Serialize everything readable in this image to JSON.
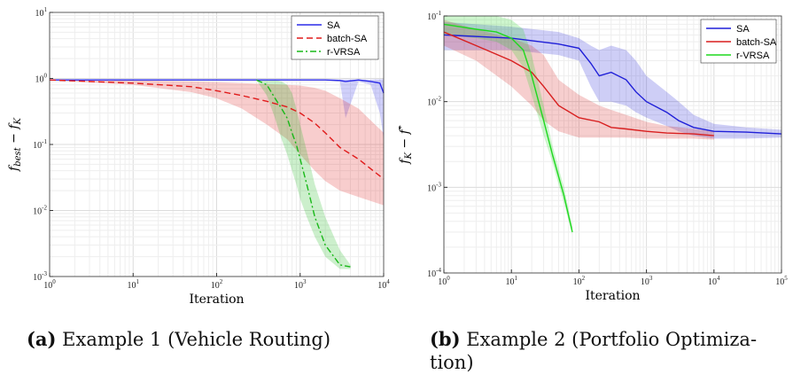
{
  "chart_data": [
    {
      "type": "line",
      "title": "",
      "xlabel": "Iteration",
      "ylabel": "f_best − f_K",
      "xscale": "log",
      "yscale": "log",
      "xlim": [
        1,
        10000
      ],
      "ylim": [
        0.001,
        10
      ],
      "xticks": [
        "10^0",
        "10^1",
        "10^2",
        "10^3",
        "10^4"
      ],
      "yticks": [
        "10^-3",
        "10^-2",
        "10^-1",
        "10^0",
        "10^1"
      ],
      "grid": true,
      "legend_position": "top-right",
      "series": [
        {
          "name": "SA",
          "color": "#2b2be8",
          "style": "solid",
          "x": [
            1,
            100,
            1000,
            2000,
            3000,
            3500,
            5000,
            7000,
            9000,
            10000
          ],
          "y": [
            0.95,
            0.95,
            0.95,
            0.95,
            0.93,
            0.9,
            0.95,
            0.9,
            0.85,
            0.6
          ],
          "band_low": [
            0.95,
            0.95,
            0.95,
            0.95,
            0.9,
            0.25,
            0.9,
            0.8,
            0.3,
            0.12
          ],
          "band_high": [
            0.96,
            0.96,
            0.96,
            0.96,
            0.96,
            0.97,
            0.96,
            0.96,
            0.97,
            0.98
          ]
        },
        {
          "name": "batch-SA",
          "color": "#e01b1b",
          "style": "dashed",
          "x": [
            1,
            10,
            50,
            100,
            200,
            400,
            700,
            1000,
            1500,
            2000,
            3000,
            5000,
            10000
          ],
          "y": [
            0.95,
            0.85,
            0.75,
            0.65,
            0.55,
            0.45,
            0.37,
            0.3,
            0.21,
            0.15,
            0.09,
            0.06,
            0.03
          ],
          "band_low": [
            0.93,
            0.8,
            0.62,
            0.5,
            0.35,
            0.2,
            0.12,
            0.07,
            0.04,
            0.028,
            0.02,
            0.016,
            0.012
          ],
          "band_high": [
            0.97,
            0.93,
            0.9,
            0.88,
            0.85,
            0.82,
            0.8,
            0.78,
            0.72,
            0.65,
            0.5,
            0.35,
            0.15
          ]
        },
        {
          "name": "r-VRSA",
          "color": "#18b818",
          "style": "dashdot",
          "x": [
            300,
            400,
            500,
            600,
            700,
            800,
            900,
            1000,
            1200,
            1500,
            2000,
            3000,
            4000
          ],
          "y": [
            0.95,
            0.8,
            0.5,
            0.35,
            0.25,
            0.15,
            0.1,
            0.06,
            0.025,
            0.008,
            0.003,
            0.0015,
            0.0014
          ],
          "band_low": [
            0.93,
            0.55,
            0.25,
            0.12,
            0.07,
            0.04,
            0.025,
            0.015,
            0.008,
            0.004,
            0.002,
            0.0013,
            0.0013
          ],
          "band_high": [
            0.97,
            0.96,
            0.95,
            0.9,
            0.8,
            0.6,
            0.35,
            0.2,
            0.08,
            0.025,
            0.008,
            0.0025,
            0.0015
          ]
        }
      ]
    },
    {
      "type": "line",
      "title": "",
      "xlabel": "Iteration",
      "ylabel": "f_K − f*",
      "xscale": "log",
      "yscale": "log",
      "xlim": [
        1,
        100000
      ],
      "ylim": [
        0.0001,
        0.1
      ],
      "xticks": [
        "10^0",
        "10^1",
        "10^2",
        "10^3",
        "10^4",
        "10^5"
      ],
      "yticks": [
        "10^-4",
        "10^-3",
        "10^-2",
        "10^-1"
      ],
      "grid": true,
      "legend_position": "top-right",
      "series": [
        {
          "name": "SA",
          "color": "#1f1fd8",
          "style": "solid",
          "x": [
            1,
            10,
            50,
            100,
            150,
            200,
            300,
            500,
            700,
            1000,
            2000,
            3000,
            5000,
            10000,
            30000,
            100000
          ],
          "y": [
            0.06,
            0.055,
            0.047,
            0.042,
            0.028,
            0.02,
            0.022,
            0.018,
            0.013,
            0.01,
            0.0075,
            0.006,
            0.005,
            0.0045,
            0.0044,
            0.0042
          ],
          "band_low": [
            0.04,
            0.04,
            0.035,
            0.03,
            0.015,
            0.01,
            0.01,
            0.009,
            0.0075,
            0.0065,
            0.0052,
            0.0045,
            0.004,
            0.0037,
            0.0037,
            0.0038
          ],
          "band_high": [
            0.085,
            0.075,
            0.065,
            0.055,
            0.045,
            0.04,
            0.045,
            0.04,
            0.03,
            0.02,
            0.013,
            0.01,
            0.007,
            0.0055,
            0.005,
            0.0047
          ]
        },
        {
          "name": "batch-SA",
          "color": "#d81f1f",
          "style": "solid",
          "x": [
            1,
            3,
            10,
            20,
            30,
            50,
            100,
            200,
            300,
            500,
            1000,
            2000,
            5000,
            10000
          ],
          "y": [
            0.065,
            0.045,
            0.03,
            0.022,
            0.015,
            0.009,
            0.0065,
            0.0058,
            0.005,
            0.0048,
            0.0045,
            0.0043,
            0.0042,
            0.004
          ],
          "band_low": [
            0.045,
            0.03,
            0.015,
            0.009,
            0.006,
            0.0045,
            0.0038,
            0.0038,
            0.0038,
            0.0038,
            0.0037,
            0.0037,
            0.0037,
            0.0036
          ],
          "band_high": [
            0.09,
            0.07,
            0.055,
            0.045,
            0.035,
            0.018,
            0.012,
            0.009,
            0.008,
            0.007,
            0.0058,
            0.0052,
            0.0048,
            0.0045
          ]
        },
        {
          "name": "r-VRSA",
          "color": "#1ed81e",
          "style": "solid",
          "x": [
            1,
            3,
            6,
            10,
            15,
            20,
            30,
            40,
            60,
            80
          ],
          "y": [
            0.08,
            0.07,
            0.065,
            0.055,
            0.04,
            0.02,
            0.006,
            0.0025,
            0.0008,
            0.0003
          ],
          "band_low": [
            0.06,
            0.055,
            0.05,
            0.04,
            0.025,
            0.012,
            0.004,
            0.002,
            0.00065,
            0.00028
          ],
          "band_high": [
            0.1,
            0.1,
            0.1,
            0.09,
            0.07,
            0.035,
            0.009,
            0.0032,
            0.001,
            0.00035
          ]
        }
      ]
    }
  ],
  "captions": [
    {
      "label": "(a)",
      "line1": "Example 1 (Vehicle Routing)",
      "line2": ""
    },
    {
      "label": "(b)",
      "line1": "Example 2 (Portfolio Optimiza-",
      "line2": "tion)"
    }
  ]
}
